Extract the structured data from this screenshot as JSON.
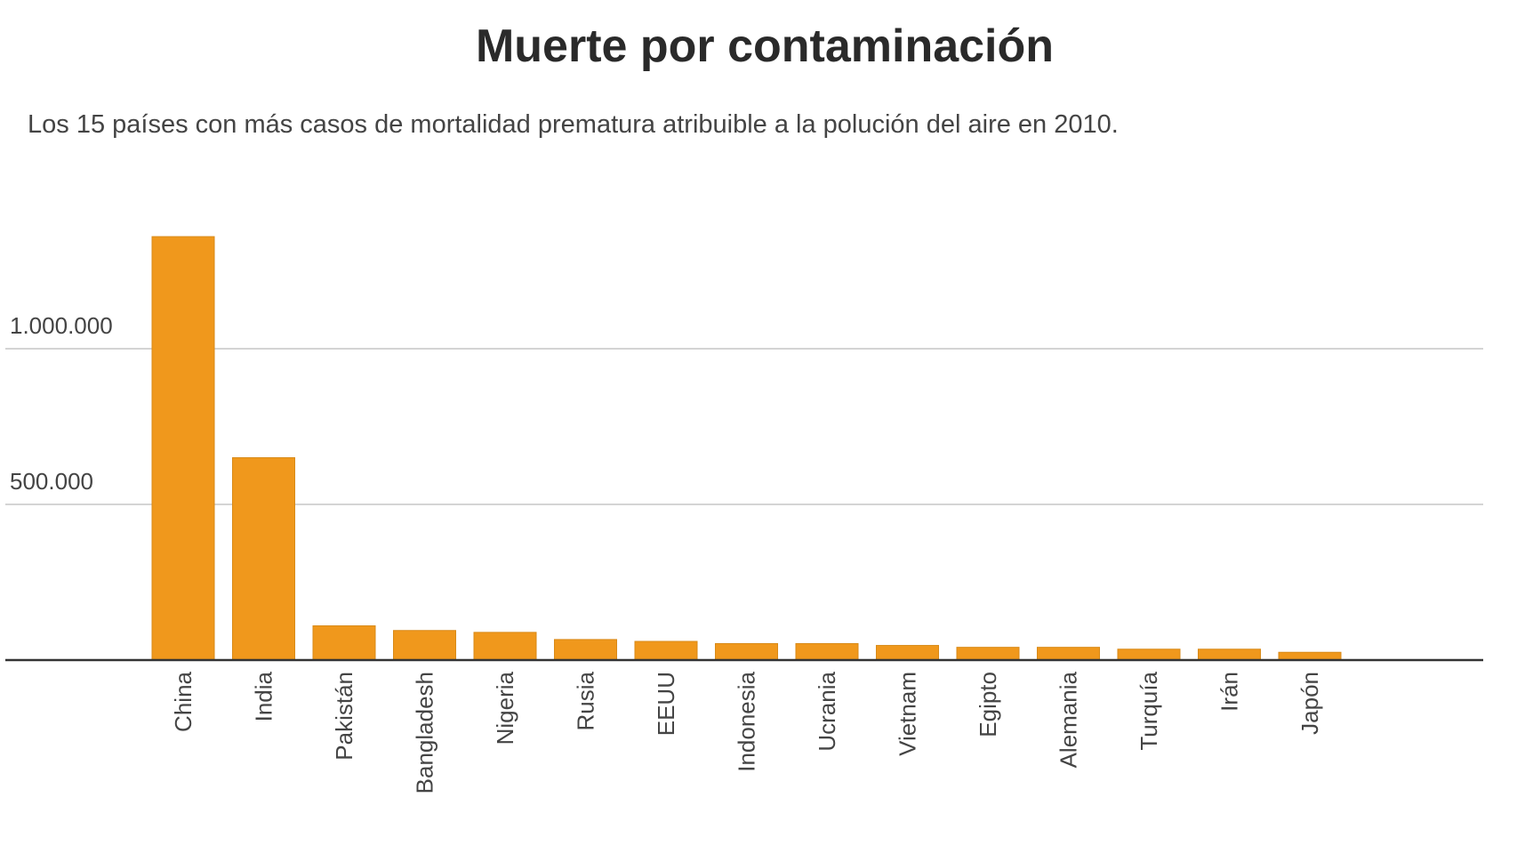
{
  "chart_data": {
    "type": "bar",
    "title": "Muerte por contaminación",
    "subtitle": "Los 15 países con más casos de mortalidad prematura atribuible a la polución del aire en 2010.",
    "categories": [
      "China",
      "India",
      "Pakistán",
      "Bangladesh",
      "Nigeria",
      "Rusia",
      "EEUU",
      "Indonesia",
      "Ucrania",
      "Vietnam",
      "Egipto",
      "Alemania",
      "Turquía",
      "Irán",
      "Japón"
    ],
    "values": [
      1360000,
      650000,
      110000,
      95000,
      89000,
      66000,
      60000,
      53000,
      53000,
      47000,
      41000,
      41000,
      35000,
      35000,
      25000
    ],
    "yticks": [
      500000,
      1000000
    ],
    "ytick_labels": [
      "500.000",
      "1.000.000"
    ],
    "ylim": [
      0,
      1400000
    ],
    "grid": true,
    "bar_color": "#F0981C",
    "xlabel": "",
    "ylabel": ""
  }
}
